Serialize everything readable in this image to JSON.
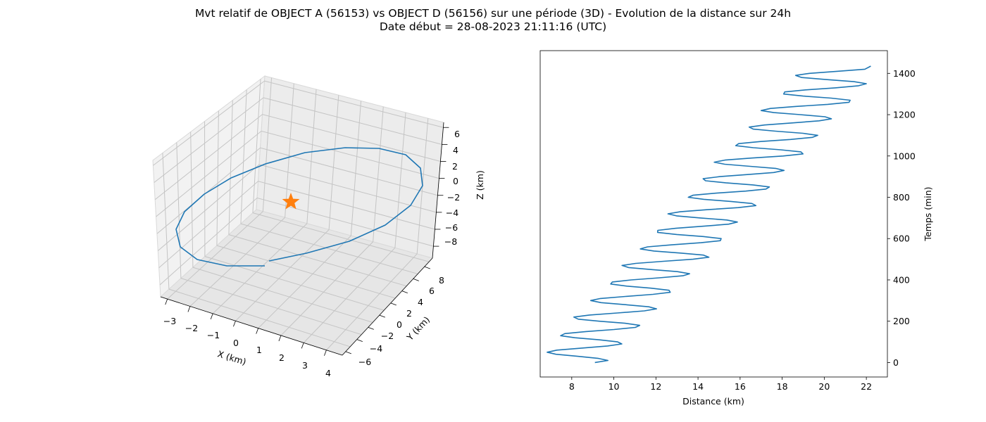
{
  "figure": {
    "title_line1": "Mvt relatif de OBJECT A (56153) vs OBJECT D (56156) sur une période (3D) - Evolution de la distance sur 24h",
    "title_line2": "Date début = 28-08-2023 21:11:16 (UTC)"
  },
  "colors": {
    "series": "#1f77b4",
    "star": "#ff7f0e",
    "pane": "#f2f2f2",
    "grid": "#b0b0b0"
  },
  "chart_data": [
    {
      "type": "line3d",
      "xlabel": "X (km)",
      "ylabel": "Y (km)",
      "zlabel": "Z (km)",
      "x_ticks": [
        "−3",
        "−2",
        "−1",
        "0",
        "1",
        "2",
        "3",
        "4"
      ],
      "y_ticks": [
        "−6",
        "−4",
        "−2",
        "0",
        "2",
        "4",
        "6",
        "8"
      ],
      "z_ticks": [
        "6",
        "4",
        "2",
        "0",
        "−2",
        "−4",
        "−6",
        "−8"
      ],
      "xlim": [
        -3.4,
        4.3
      ],
      "ylim": [
        -6.8,
        9.2
      ],
      "zlim": [
        -9.2,
        6.8
      ],
      "marker": {
        "shape": "star",
        "x": 0,
        "y": 0,
        "z": 0
      },
      "grid": true
    },
    {
      "type": "line",
      "xlabel": "Distance (km)",
      "ylabel": "Temps (min)",
      "x_ticks": [
        "8",
        "10",
        "12",
        "14",
        "16",
        "18",
        "20",
        "22"
      ],
      "y_ticks": [
        "0",
        "200",
        "400",
        "600",
        "800",
        "1000",
        "1200",
        "1400"
      ],
      "xlim": [
        6.5,
        23.0
      ],
      "ylim": [
        -70,
        1510
      ],
      "y_axis_side": "right",
      "series": [
        {
          "description": "distance oscillating around a linear trend; trend from 8.2 km at t=0 to 21.2 km at t=1435, amplitude 1.4 km, period 96 min",
          "points": [
            [
              9.1,
              0
            ],
            [
              9.72,
              10
            ],
            [
              9.27,
              20
            ],
            [
              8.28,
              30
            ],
            [
              7.25,
              40
            ],
            [
              6.83,
              50
            ],
            [
              7.29,
              60
            ],
            [
              8.47,
              70
            ],
            [
              9.7,
              80
            ],
            [
              10.38,
              90
            ],
            [
              10.18,
              100
            ],
            [
              9.28,
              110
            ],
            [
              8.15,
              120
            ],
            [
              7.47,
              130
            ],
            [
              7.67,
              140
            ],
            [
              8.68,
              150
            ],
            [
              10.01,
              160
            ],
            [
              11.02,
              170
            ],
            [
              11.23,
              180
            ],
            [
              10.53,
              190
            ],
            [
              9.31,
              200
            ],
            [
              8.31,
              210
            ],
            [
              8.1,
              220
            ],
            [
              8.84,
              230
            ],
            [
              10.16,
              240
            ],
            [
              11.45,
              250
            ],
            [
              12.03,
              260
            ],
            [
              11.66,
              270
            ],
            [
              10.56,
              280
            ],
            [
              9.4,
              290
            ],
            [
              8.9,
              300
            ],
            [
              9.36,
              310
            ],
            [
              10.55,
              320
            ],
            [
              11.86,
              330
            ],
            [
              12.68,
              340
            ],
            [
              12.62,
              350
            ],
            [
              11.76,
              360
            ],
            [
              10.62,
              370
            ],
            [
              9.85,
              380
            ],
            [
              9.93,
              390
            ],
            [
              10.82,
              400
            ],
            [
              12.16,
              410
            ],
            [
              13.28,
              420
            ],
            [
              13.6,
              430
            ],
            [
              13.02,
              440
            ],
            [
              11.81,
              450
            ],
            [
              10.7,
              460
            ],
            [
              10.39,
              470
            ],
            [
              11.04,
              480
            ],
            [
              12.36,
              490
            ],
            [
              13.76,
              500
            ],
            [
              14.52,
              510
            ],
            [
              14.26,
              520
            ],
            [
              13.17,
              530
            ],
            [
              11.91,
              540
            ],
            [
              11.26,
              550
            ],
            [
              11.6,
              560
            ],
            [
              12.76,
              570
            ],
            [
              14.14,
              580
            ],
            [
              15.06,
              590
            ],
            [
              15.1,
              600
            ],
            [
              14.25,
              610
            ],
            [
              12.99,
              620
            ],
            [
              12.08,
              630
            ],
            [
              12.09,
              640
            ],
            [
              12.94,
              650
            ],
            [
              14.27,
              660
            ],
            [
              15.46,
              670
            ],
            [
              15.87,
              680
            ],
            [
              15.37,
              690
            ],
            [
              14.12,
              700
            ],
            [
              12.98,
              710
            ],
            [
              12.57,
              720
            ],
            [
              13.15,
              730
            ],
            [
              14.46,
              740
            ],
            [
              15.91,
              750
            ],
            [
              16.75,
              760
            ],
            [
              16.56,
              770
            ],
            [
              15.56,
              780
            ],
            [
              14.28,
              790
            ],
            [
              13.54,
              800
            ],
            [
              13.76,
              810
            ],
            [
              14.87,
              820
            ],
            [
              16.27,
              830
            ],
            [
              17.23,
              840
            ],
            [
              17.39,
              850
            ],
            [
              16.61,
              860
            ],
            [
              15.32,
              870
            ],
            [
              14.36,
              880
            ],
            [
              14.24,
              890
            ],
            [
              15.04,
              900
            ],
            [
              16.34,
              910
            ],
            [
              17.59,
              920
            ],
            [
              18.09,
              930
            ],
            [
              17.69,
              940
            ],
            [
              16.48,
              950
            ],
            [
              15.27,
              960
            ],
            [
              14.77,
              970
            ],
            [
              15.28,
              980
            ],
            [
              16.55,
              990
            ],
            [
              18.04,
              1000
            ],
            [
              18.99,
              1010
            ],
            [
              18.89,
              1020
            ],
            [
              17.93,
              1030
            ],
            [
              16.63,
              1040
            ],
            [
              15.79,
              1050
            ],
            [
              15.93,
              1060
            ],
            [
              16.98,
              1070
            ],
            [
              18.39,
              1080
            ],
            [
              19.44,
              1090
            ],
            [
              19.69,
              1100
            ],
            [
              18.99,
              1110
            ],
            [
              17.69,
              1120
            ],
            [
              16.63,
              1130
            ],
            [
              16.43,
              1140
            ],
            [
              17.16,
              1150
            ],
            [
              18.46,
              1160
            ],
            [
              19.75,
              1170
            ],
            [
              20.34,
              1180
            ],
            [
              20.03,
              1190
            ],
            [
              18.86,
              1200
            ],
            [
              17.6,
              1210
            ],
            [
              17.0,
              1220
            ],
            [
              17.44,
              1230
            ],
            [
              18.67,
              1240
            ],
            [
              20.16,
              1250
            ],
            [
              21.18,
              1260
            ],
            [
              21.23,
              1270
            ],
            [
              20.33,
              1280
            ],
            [
              19.0,
              1290
            ],
            [
              18.07,
              1300
            ],
            [
              18.12,
              1310
            ],
            [
              19.11,
              1320
            ],
            [
              20.52,
              1330
            ],
            [
              21.63,
              1340
            ],
            [
              22.0,
              1350
            ],
            [
              21.41,
              1360
            ],
            [
              20.08,
              1370
            ],
            [
              18.93,
              1380
            ],
            [
              18.64,
              1390
            ],
            [
              19.3,
              1400
            ],
            [
              20.6,
              1410
            ],
            [
              21.93,
              1420
            ],
            [
              22.21,
              1435
            ]
          ]
        }
      ]
    }
  ]
}
